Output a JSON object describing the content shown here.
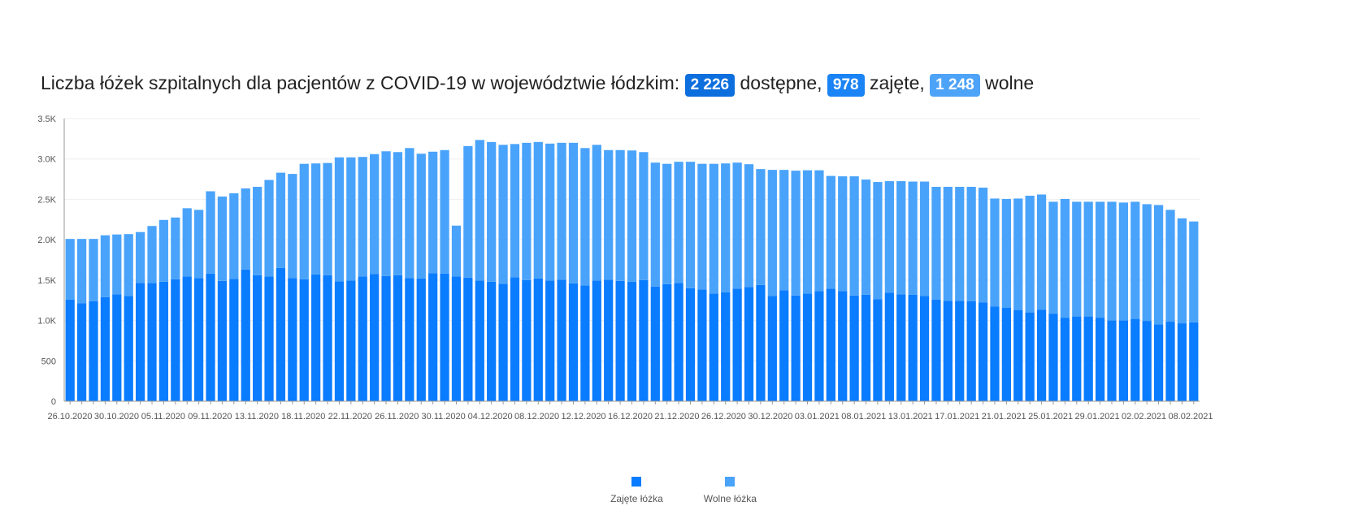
{
  "header": {
    "title_prefix": "Liczba łóżek szpitalnych dla pacjentów z COVID-19 w województwie łódzkim:",
    "available_value": "2 226",
    "available_label": "dostępne,",
    "occupied_value": "978",
    "occupied_label": "zajęte,",
    "free_value": "1 248",
    "free_label": "wolne"
  },
  "legend": {
    "occupied": "Zajęte łóżka",
    "free": "Wolne łóżka"
  },
  "chart_data": {
    "type": "bar",
    "stacked": true,
    "grid": "horizontal",
    "legend_position": "bottom",
    "ylim": [
      0,
      3500
    ],
    "y_ticks": [
      "0",
      "500",
      "1.0K",
      "1.5K",
      "2.0K",
      "2.5K",
      "3.0K",
      "3.5K"
    ],
    "x_tick_labels": [
      "26.10.2020",
      "30.10.2020",
      "05.11.2020",
      "09.11.2020",
      "13.11.2020",
      "18.11.2020",
      "22.11.2020",
      "26.11.2020",
      "30.11.2020",
      "04.12.2020",
      "08.12.2020",
      "12.12.2020",
      "16.12.2020",
      "21.12.2020",
      "26.12.2020",
      "30.12.2020",
      "03.01.2021",
      "08.01.2021",
      "13.01.2021",
      "17.01.2021",
      "21.01.2021",
      "25.01.2021",
      "29.01.2021",
      "02.02.2021",
      "08.02.2021"
    ],
    "colors": {
      "occupied": "#0a7cff",
      "free": "#4aa3fa"
    },
    "series": [
      {
        "name": "Zajęte łóżka",
        "values": [
          1260,
          1215,
          1240,
          1290,
          1325,
          1305,
          1465,
          1465,
          1480,
          1510,
          1545,
          1525,
          1580,
          1490,
          1515,
          1630,
          1560,
          1545,
          1650,
          1525,
          1510,
          1570,
          1560,
          1485,
          1495,
          1545,
          1575,
          1550,
          1560,
          1525,
          1520,
          1585,
          1580,
          1545,
          1530,
          1495,
          1480,
          1455,
          1535,
          1500,
          1520,
          1495,
          1505,
          1460,
          1435,
          1495,
          1505,
          1490,
          1480,
          1500,
          1420,
          1450,
          1465,
          1400,
          1385,
          1335,
          1350,
          1395,
          1415,
          1440,
          1305,
          1375,
          1310,
          1335,
          1365,
          1395,
          1365,
          1310,
          1320,
          1265,
          1345,
          1325,
          1320,
          1305,
          1260,
          1245,
          1245,
          1240,
          1225,
          1175,
          1160,
          1130,
          1100,
          1135,
          1085,
          1035,
          1050,
          1050,
          1035,
          1000,
          1000,
          1020,
          995,
          950,
          985,
          965,
          978
        ]
      },
      {
        "name": "Wolne łóżka",
        "values": [
          750,
          795,
          770,
          765,
          740,
          765,
          630,
          705,
          765,
          765,
          845,
          845,
          1020,
          1045,
          1060,
          1005,
          1095,
          1195,
          1180,
          1290,
          1430,
          1375,
          1390,
          1535,
          1525,
          1480,
          1485,
          1545,
          1525,
          1610,
          1545,
          1505,
          1530,
          630,
          1630,
          1740,
          1730,
          1720,
          1650,
          1700,
          1690,
          1695,
          1695,
          1740,
          1700,
          1680,
          1605,
          1620,
          1625,
          1585,
          1535,
          1490,
          1500,
          1565,
          1555,
          1605,
          1595,
          1560,
          1520,
          1435,
          1560,
          1490,
          1545,
          1525,
          1495,
          1395,
          1420,
          1475,
          1425,
          1450,
          1380,
          1400,
          1400,
          1415,
          1395,
          1410,
          1410,
          1415,
          1420,
          1335,
          1345,
          1380,
          1445,
          1425,
          1385,
          1470,
          1420,
          1420,
          1435,
          1470,
          1460,
          1450,
          1445,
          1480,
          1385,
          1300,
          1248
        ]
      }
    ]
  }
}
